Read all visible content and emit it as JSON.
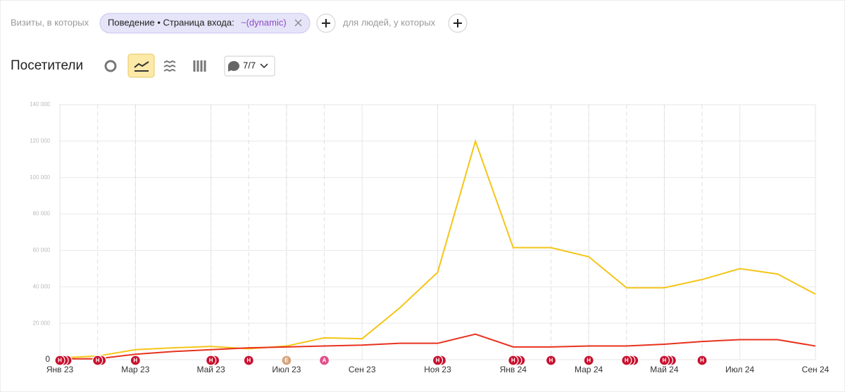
{
  "filter": {
    "prefix": "Визиты, в которых",
    "pill": "Поведение • Страница входа:",
    "pill_value": "~(dynamic)",
    "suffix": "для людей, у которых"
  },
  "section": {
    "title": "Посетители",
    "notes_button": "7/7"
  },
  "chart_data": {
    "type": "line",
    "categories": [
      "Янв 23",
      null,
      "Мар 23",
      null,
      "Май 23",
      null,
      "Июл 23",
      null,
      "Сен 23",
      null,
      "Ноя 23",
      null,
      "Янв 24",
      null,
      "Мар 24",
      null,
      "Май 24",
      null,
      "Июл 24",
      null,
      "Сен 24"
    ],
    "series": [
      {
        "color": "#f5c518",
        "values": [
          1000,
          2000,
          5500,
          6500,
          7300,
          6000,
          7500,
          12000,
          11500,
          28500,
          48000,
          120000,
          61500,
          61500,
          56500,
          39500,
          39500,
          44000,
          50000,
          47000,
          36000
        ]
      },
      {
        "color": "#e8321e",
        "values": [
          500,
          500,
          3000,
          4500,
          5500,
          6500,
          7000,
          7500,
          8000,
          9000,
          9000,
          14000,
          7000,
          7000,
          7500,
          7500,
          8500,
          10000,
          11000,
          11000,
          7500
        ]
      }
    ],
    "ylim": [
      0,
      140000
    ],
    "yticks": [
      0,
      {
        "value": 20000,
        "label": "20 000"
      },
      {
        "value": 40000,
        "label": "40 000"
      },
      {
        "value": 60000,
        "label": "60 000"
      },
      {
        "value": 80000,
        "label": "80 000"
      },
      {
        "value": 100000,
        "label": "100 000"
      },
      {
        "value": 120000,
        "label": "120 000"
      },
      {
        "value": 140000,
        "label": "140 000"
      }
    ],
    "grid": true,
    "markers": [
      {
        "label": "Н",
        "at": 0,
        "count": 3
      },
      {
        "label": "Н",
        "at": 1,
        "count": 2
      },
      {
        "label": "Н",
        "at": 2,
        "count": 1
      },
      {
        "label": "Н",
        "at": 4,
        "count": 2
      },
      {
        "label": "Н",
        "at": 5,
        "count": 1
      },
      {
        "label": "Е",
        "at": 6,
        "count": 1
      },
      {
        "label": "А",
        "at": 7,
        "count": 1
      },
      {
        "label": "Н",
        "at": 10,
        "count": 2
      },
      {
        "label": "Н",
        "at": 12,
        "count": 3
      },
      {
        "label": "Н",
        "at": 13,
        "count": 1
      },
      {
        "label": "Н",
        "at": 14,
        "count": 1
      },
      {
        "label": "Н",
        "at": 15,
        "count": 3
      },
      {
        "label": "Н",
        "at": 16,
        "count": 3
      },
      {
        "label": "Н",
        "at": 17,
        "count": 1
      }
    ]
  }
}
